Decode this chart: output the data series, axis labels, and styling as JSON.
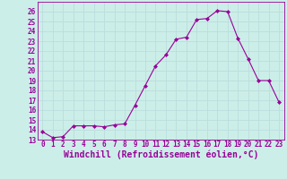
{
  "x": [
    0,
    1,
    2,
    3,
    4,
    5,
    6,
    7,
    8,
    9,
    10,
    11,
    12,
    13,
    14,
    15,
    16,
    17,
    18,
    19,
    20,
    21,
    22,
    23
  ],
  "y": [
    13.8,
    13.2,
    13.3,
    14.4,
    14.4,
    14.4,
    14.3,
    14.5,
    14.6,
    16.5,
    18.5,
    20.5,
    21.6,
    23.2,
    23.4,
    25.2,
    25.3,
    26.1,
    26.0,
    23.3,
    21.2,
    19.0,
    19.0,
    16.8
  ],
  "xlabel": "Windchill (Refroidissement éolien,°C)",
  "ylim": [
    13,
    27
  ],
  "xlim": [
    -0.5,
    23.5
  ],
  "yticks": [
    13,
    14,
    15,
    16,
    17,
    18,
    19,
    20,
    21,
    22,
    23,
    24,
    25,
    26
  ],
  "xticks": [
    0,
    1,
    2,
    3,
    4,
    5,
    6,
    7,
    8,
    9,
    10,
    11,
    12,
    13,
    14,
    15,
    16,
    17,
    18,
    19,
    20,
    21,
    22,
    23
  ],
  "line_color": "#990099",
  "marker": "D",
  "marker_size": 2.0,
  "bg_color": "#cceee8",
  "grid_color": "#bbdddd",
  "tick_label_fontsize": 5.5,
  "xlabel_fontsize": 7.0
}
